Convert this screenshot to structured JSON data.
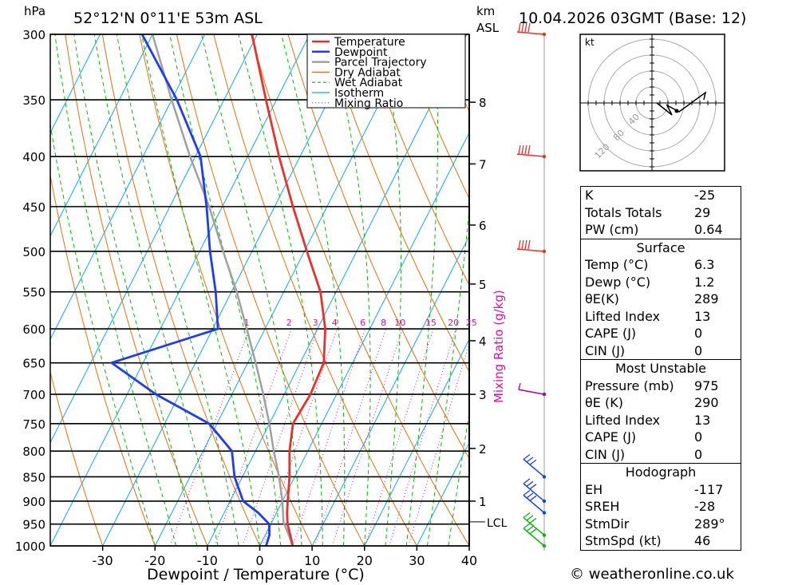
{
  "header": {
    "hpa_label": "hPa",
    "location": "52°12'N  0°11'E  53m  ASL",
    "km_label": "km",
    "asl_label": "ASL",
    "datetime": "10.04.2026  03GMT  (Base: 12)"
  },
  "colors": {
    "temperature": "#e8302c",
    "dewpoint": "#1e3cf0",
    "parcel": "#a0a0a0",
    "dry_adiabat": "#e07010",
    "wet_adiabat": "#10b010",
    "isotherm": "#10a8e8",
    "mixing_ratio": "#e0109c"
  },
  "chart_data": {
    "type": "line",
    "title": "52°12'N  0°11'E  53m  ASL",
    "xlabel": "Dewpoint / Temperature (°C)",
    "ylabel": "hPa",
    "right_axis_label": "Mixing Ratio (g/kg)",
    "xlim": [
      -40,
      40
    ],
    "ylim": [
      1000,
      300
    ],
    "x_ticks": [
      -30,
      -20,
      -10,
      0,
      10,
      20,
      30,
      40
    ],
    "pressure_levels": [
      300,
      350,
      400,
      450,
      500,
      550,
      600,
      650,
      700,
      750,
      800,
      850,
      900,
      950,
      1000
    ],
    "km_ticks": [
      {
        "label": "8",
        "p": 352
      },
      {
        "label": "7",
        "p": 407
      },
      {
        "label": "6",
        "p": 470
      },
      {
        "label": "5",
        "p": 540
      },
      {
        "label": "4",
        "p": 617
      },
      {
        "label": "3",
        "p": 700
      },
      {
        "label": "2",
        "p": 795
      },
      {
        "label": "1",
        "p": 900
      }
    ],
    "lcl": {
      "label": "LCL",
      "p": 945
    },
    "mixing_ratio_labels": [
      "1",
      "2",
      "3",
      "4",
      "6",
      "8",
      "10",
      "15",
      "20",
      "25"
    ],
    "mixing_ratio_label_p": 600,
    "legend": [
      "Temperature",
      "Dewpoint",
      "Parcel Trajectory",
      "Dry Adiabat",
      "Wet Adiabat",
      "Isotherm",
      "Mixing Ratio"
    ],
    "legend_position": "top-right",
    "series": [
      {
        "name": "Temperature",
        "points": [
          [
            1000,
            6.3
          ],
          [
            975,
            4.8
          ],
          [
            950,
            3.2
          ],
          [
            925,
            2.0
          ],
          [
            900,
            1.0
          ],
          [
            850,
            -1.0
          ],
          [
            800,
            -3.5
          ],
          [
            750,
            -5.5
          ],
          [
            700,
            -5.0
          ],
          [
            650,
            -5.5
          ],
          [
            600,
            -8.5
          ],
          [
            550,
            -13
          ],
          [
            500,
            -19.5
          ],
          [
            450,
            -26.5
          ],
          [
            400,
            -34
          ],
          [
            350,
            -42
          ],
          [
            300,
            -51
          ]
        ]
      },
      {
        "name": "Dewpoint",
        "points": [
          [
            1000,
            1.2
          ],
          [
            975,
            0.8
          ],
          [
            950,
            -0.3
          ],
          [
            925,
            -3.5
          ],
          [
            900,
            -7.5
          ],
          [
            850,
            -11.5
          ],
          [
            800,
            -14.5
          ],
          [
            750,
            -21.5
          ],
          [
            700,
            -34.5
          ],
          [
            650,
            -46
          ],
          [
            600,
            -29
          ],
          [
            550,
            -33
          ],
          [
            500,
            -38
          ],
          [
            450,
            -43
          ],
          [
            400,
            -49
          ],
          [
            350,
            -59
          ],
          [
            300,
            -72
          ]
        ]
      },
      {
        "name": "Parcel Trajectory",
        "points": [
          [
            1000,
            6.3
          ],
          [
            975,
            4.5
          ],
          [
            945,
            2.2
          ],
          [
            900,
            0
          ],
          [
            850,
            -3.0
          ],
          [
            800,
            -6.5
          ],
          [
            750,
            -10
          ],
          [
            700,
            -14
          ],
          [
            650,
            -18.5
          ],
          [
            600,
            -23.5
          ],
          [
            550,
            -29
          ],
          [
            500,
            -35.5
          ],
          [
            450,
            -42.5
          ],
          [
            400,
            -51
          ],
          [
            350,
            -60
          ],
          [
            300,
            -70
          ]
        ]
      }
    ]
  },
  "hodograph": {
    "unit_label": "kt",
    "ring_labels": [
      "40",
      "80",
      "120"
    ]
  },
  "indices": {
    "top": [
      {
        "label": "K",
        "value": "-25"
      },
      {
        "label": "Totals Totals",
        "value": "29"
      },
      {
        "label": "PW (cm)",
        "value": "0.64"
      }
    ],
    "surface_title": "Surface",
    "surface": [
      {
        "label": "Temp (°C)",
        "value": "6.3"
      },
      {
        "label": "Dewp (°C)",
        "value": "1.2"
      },
      {
        "label": "θE(K)",
        "value": "289"
      },
      {
        "label": "Lifted Index",
        "value": "13"
      },
      {
        "label": "CAPE (J)",
        "value": "0"
      },
      {
        "label": "CIN (J)",
        "value": "0"
      }
    ],
    "unstable_title": "Most Unstable",
    "unstable": [
      {
        "label": "Pressure (mb)",
        "value": "975"
      },
      {
        "label": "θE (K)",
        "value": "290"
      },
      {
        "label": "Lifted Index",
        "value": "13"
      },
      {
        "label": "CAPE (J)",
        "value": "0"
      },
      {
        "label": "CIN (J)",
        "value": "0"
      }
    ],
    "hodo_title": "Hodograph",
    "hodo": [
      {
        "label": "EH",
        "value": "-117"
      },
      {
        "label": "SREH",
        "value": "-28"
      },
      {
        "label": "StmDir",
        "value": "289°"
      },
      {
        "label": "StmSpd (kt)",
        "value": "46"
      }
    ]
  },
  "credit": "© weatheronline.co.uk"
}
